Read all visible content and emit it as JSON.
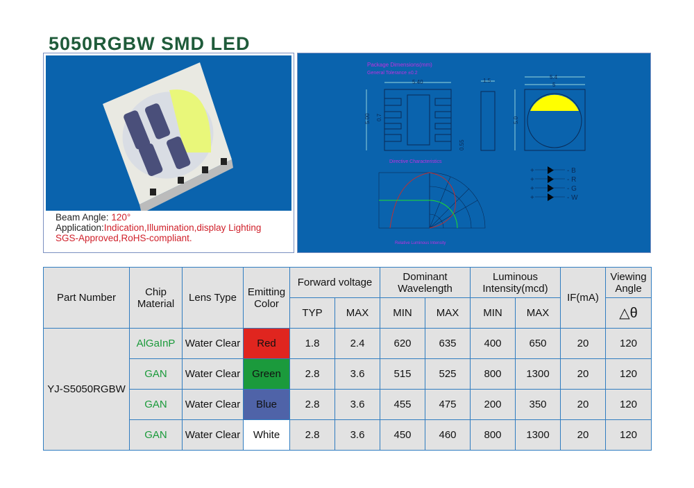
{
  "title": "5050RGBW SMD LED",
  "caption": {
    "beam_label": "Beam Angle: ",
    "beam_value": "120°",
    "app_label": "Application:",
    "app_value": "Indication,Illumination,display Lighting",
    "cert": "SGS-Approved,RoHS-compliant."
  },
  "diagram": {
    "pkg_title": "Package Dimensions(mm)",
    "tolerance": "General Tolerance ±0.2",
    "dim_w": "5.40",
    "dim_h": "5.00",
    "dim_pad": "0.7",
    "dim_gap": "0.55",
    "dim_side": "1.5",
    "dim_top_outer": "5.4",
    "dim_top_inner": "5",
    "dim_top_h": "5.0",
    "directive_title": "Directive Characteristics",
    "directive_xlabel": "Relative Luminous Intensity",
    "pins": [
      "- B",
      "- R",
      "- G",
      "- W"
    ],
    "plus": "+"
  },
  "table": {
    "headers": {
      "part": "Part Number",
      "chip": "Chip Material",
      "lens": "Lens Type",
      "color": "Emitting Color",
      "vf": "Forward voltage",
      "wl": "Dominant Wavelength",
      "iv": "Luminous Intensity(mcd)",
      "if": "IF(mA)",
      "angle": "Viewing Angle",
      "typ": "TYP",
      "max": "MAX",
      "min": "MIN",
      "delta": "△θ"
    },
    "part_number": "YJ-S5050RGBW",
    "rows": [
      {
        "chip": "AlGaInP",
        "lens": "Water Clear",
        "color": "Red",
        "swatch": "#e0251f",
        "vtyp": "1.8",
        "vmax": "2.4",
        "wmin": "620",
        "wmax": "635",
        "imin": "400",
        "imax": "650",
        "if": "20",
        "angle": "120"
      },
      {
        "chip": "GAN",
        "lens": "Water Clear",
        "color": "Green",
        "swatch": "#1b9a3c",
        "vtyp": "2.8",
        "vmax": "3.6",
        "wmin": "515",
        "wmax": "525",
        "imin": "800",
        "imax": "1300",
        "if": "20",
        "angle": "120"
      },
      {
        "chip": "GAN",
        "lens": "Water Clear",
        "color": "Blue",
        "swatch": "#4f63a8",
        "vtyp": "2.8",
        "vmax": "3.6",
        "wmin": "455",
        "wmax": "475",
        "imin": "200",
        "imax": "350",
        "if": "20",
        "angle": "120"
      },
      {
        "chip": "GAN",
        "lens": "Water Clear",
        "color": "White",
        "swatch": "#ffffff",
        "vtyp": "2.8",
        "vmax": "3.6",
        "wmin": "450",
        "wmax": "460",
        "imin": "800",
        "imax": "1300",
        "if": "20",
        "angle": "120"
      }
    ]
  }
}
